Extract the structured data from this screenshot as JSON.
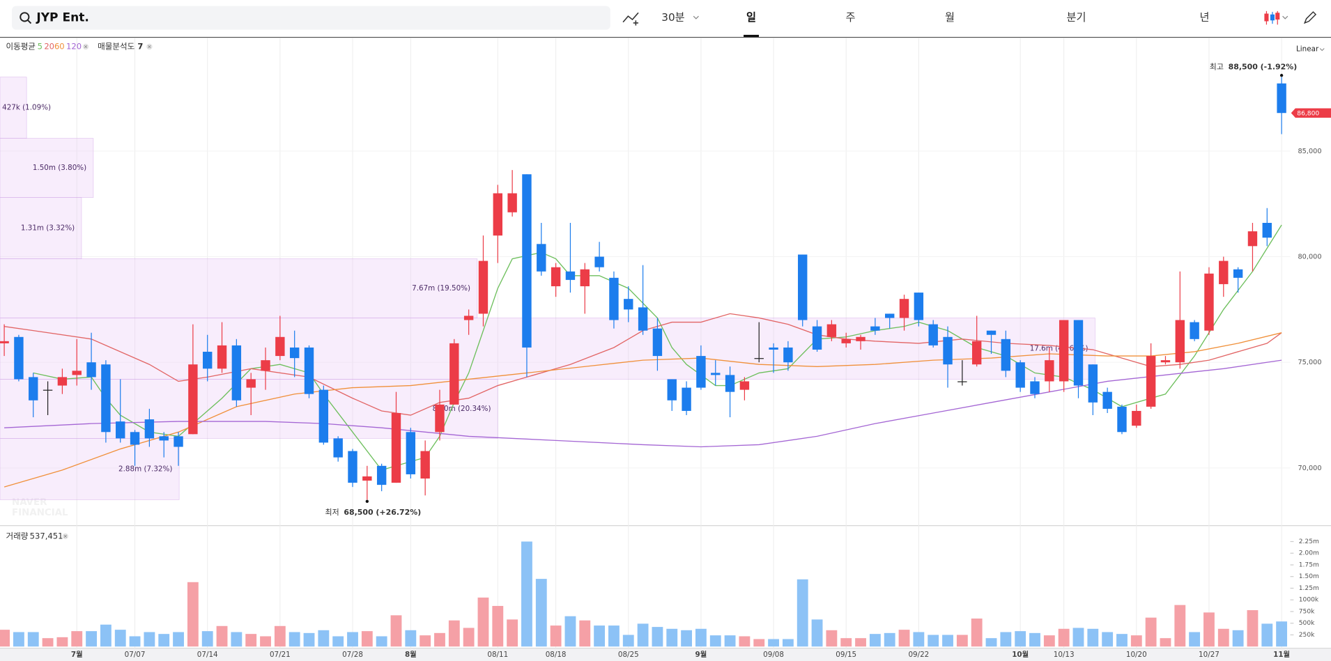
{
  "toolbar": {
    "search": "JYP Ent.",
    "intervals": [
      "30분",
      "일",
      "주",
      "월",
      "분기",
      "년"
    ],
    "selected": 1,
    "scale": "Linear"
  },
  "chart_data": {
    "type": "candlestick",
    "categories": [
      null,
      null,
      null,
      null,
      null,
      "7월",
      null,
      null,
      null,
      "07/07",
      null,
      null,
      null,
      null,
      "07/14",
      null,
      null,
      null,
      null,
      "07/21",
      null,
      null,
      null,
      null,
      "07/28",
      null,
      null,
      null,
      "8월",
      null,
      null,
      null,
      null,
      null,
      "08/11",
      null,
      null,
      null,
      "08/18",
      null,
      null,
      null,
      null,
      "08/25",
      null,
      null,
      null,
      null,
      "9월",
      null,
      null,
      null,
      null,
      "09/08",
      null,
      null,
      null,
      null,
      "09/15",
      null,
      null,
      null,
      null,
      "09/22",
      null,
      null,
      null,
      null,
      null,
      null,
      "10월",
      null,
      null,
      "10/13",
      null,
      null,
      null,
      null,
      "10/20",
      null,
      null,
      null,
      null,
      "10/27",
      null,
      null,
      null,
      null,
      "11월"
    ],
    "open": [
      75900,
      76200,
      74300,
      73700,
      73900,
      74400,
      75000,
      74900,
      72200,
      71700,
      72300,
      71500,
      71500,
      71600,
      75500,
      74700,
      75800,
      73800,
      74600,
      75300,
      75700,
      75700,
      73700,
      71400,
      70800,
      69400,
      70100,
      69300,
      71700,
      69500,
      71700,
      73000,
      77000,
      77300,
      81000,
      82100,
      83900,
      80600,
      78600,
      79300,
      78600,
      80000,
      79000,
      78000,
      77600,
      76600,
      74200,
      73800,
      75300,
      74500,
      74400,
      73700,
      75200,
      75700,
      75700,
      80100,
      76700,
      76200,
      75900,
      76000,
      76700,
      77300,
      77100,
      78300,
      76800,
      76200,
      74100,
      74900,
      76500,
      76100,
      75000,
      74100,
      74100,
      74100,
      77000,
      74900,
      73600,
      72900,
      72000,
      72900,
      75000,
      75000,
      76900,
      76500,
      78700,
      79400,
      80500,
      81600,
      88200
    ],
    "high": [
      76800,
      76300,
      74500,
      74100,
      74700,
      76100,
      76400,
      75100,
      74200,
      71800,
      72800,
      71700,
      71700,
      76800,
      76300,
      76900,
      76100,
      74500,
      75700,
      77200,
      76500,
      75800,
      73900,
      71500,
      70900,
      70100,
      70200,
      73600,
      71900,
      71300,
      73700,
      76100,
      77500,
      81000,
      83400,
      84100,
      83900,
      81600,
      79700,
      81600,
      79700,
      80700,
      79300,
      78600,
      79600,
      77100,
      74200,
      74100,
      75800,
      75100,
      74800,
      74300,
      76900,
      75900,
      76000,
      80100,
      77000,
      77000,
      76400,
      76300,
      77100,
      77300,
      78200,
      78300,
      77000,
      76700,
      75100,
      77200,
      76500,
      76500,
      75100,
      74300,
      75700,
      77000,
      77000,
      74900,
      73800,
      73000,
      73000,
      75900,
      75300,
      79300,
      77000,
      79500,
      80000,
      79500,
      81600,
      82300,
      88500
    ],
    "low": [
      75300,
      74100,
      72400,
      72500,
      73500,
      73900,
      73700,
      71200,
      71200,
      70100,
      71000,
      70500,
      70100,
      71600,
      74100,
      74500,
      72900,
      72500,
      73700,
      75100,
      74300,
      73300,
      71100,
      70300,
      69100,
      68500,
      68900,
      69300,
      69500,
      68700,
      71300,
      73000,
      76300,
      76700,
      79700,
      81900,
      74300,
      79100,
      78100,
      78300,
      77300,
      79300,
      76600,
      76900,
      76300,
      74600,
      72700,
      72500,
      73700,
      73900,
      72400,
      73200,
      75000,
      74500,
      74600,
      76700,
      75500,
      76000,
      75700,
      75600,
      76300,
      76600,
      76500,
      76700,
      75700,
      73800,
      73900,
      74800,
      75400,
      74300,
      73600,
      73300,
      73600,
      73600,
      73300,
      72500,
      72600,
      71600,
      71900,
      72800,
      74900,
      74700,
      76000,
      76300,
      78100,
      78300,
      79300,
      80500,
      85800
    ],
    "close": [
      76000,
      74200,
      73200,
      73700,
      74300,
      74600,
      74300,
      71700,
      71400,
      71100,
      71400,
      71300,
      71000,
      74900,
      74700,
      75800,
      73200,
      74200,
      75100,
      76200,
      75200,
      73500,
      71200,
      70500,
      69300,
      69600,
      69200,
      72600,
      69700,
      70800,
      73000,
      75900,
      77200,
      79800,
      83000,
      83000,
      75700,
      79300,
      79500,
      78900,
      79400,
      79500,
      77000,
      77500,
      76500,
      75300,
      73200,
      72700,
      73800,
      74400,
      73600,
      74100,
      75200,
      75600,
      75000,
      77000,
      75600,
      76800,
      76100,
      76200,
      76500,
      77100,
      78000,
      77000,
      75800,
      74900,
      74100,
      76000,
      76300,
      74600,
      73800,
      73500,
      75100,
      77000,
      73900,
      73100,
      72800,
      71700,
      72700,
      75300,
      75100,
      77000,
      76100,
      79200,
      79800,
      79000,
      81200,
      80900,
      86800
    ],
    "up_color": "#ec3c47",
    "down_color": "#1c7ded",
    "ylim": [
      67330,
      90340
    ],
    "yticks": [
      {
        "value": 70000,
        "label": "70,000"
      },
      {
        "value": 75000,
        "label": "75,000"
      },
      {
        "value": 80000,
        "label": "80,000"
      },
      {
        "value": 85000,
        "label": "85,000"
      }
    ],
    "ma_label": "이동평균",
    "moving_averages": [
      {
        "name": "5",
        "color": "#6dbf5c",
        "x": [
          2,
          4,
          6,
          7,
          8,
          10,
          12,
          13,
          15,
          17,
          19,
          21,
          22,
          24,
          26,
          27,
          29,
          30,
          31,
          32,
          33,
          34,
          35,
          37,
          38,
          39,
          41,
          43,
          45,
          46,
          47,
          49,
          50,
          52,
          54,
          56,
          58,
          60,
          62,
          63,
          65,
          67,
          69,
          71,
          73,
          75,
          77,
          79,
          80,
          82,
          84,
          86,
          88
        ],
        "values": [
          74500,
          74200,
          74300,
          73300,
          72500,
          71700,
          71500,
          72100,
          73300,
          74700,
          74900,
          74500,
          73500,
          71700,
          69900,
          70100,
          70500,
          71500,
          73100,
          74500,
          76500,
          78500,
          79900,
          80200,
          79900,
          79100,
          79100,
          78500,
          77100,
          75700,
          74900,
          73900,
          73900,
          74500,
          74700,
          76100,
          76200,
          76500,
          76700,
          76900,
          76500,
          75700,
          75300,
          74500,
          74300,
          73700,
          72900,
          73300,
          73500,
          75300,
          77500,
          79300,
          81500
        ]
      },
      {
        "name": "20",
        "color": "#e26565",
        "x": [
          0,
          2,
          6,
          10,
          12,
          14,
          17,
          21,
          24,
          26,
          28,
          30,
          32,
          34,
          36,
          39,
          42,
          44,
          46,
          48,
          50,
          52,
          54,
          56,
          58,
          60,
          63,
          66,
          69,
          72,
          75,
          77,
          79,
          81,
          83,
          85,
          87,
          88
        ],
        "values": [
          76700,
          76500,
          76100,
          74900,
          74100,
          74300,
          74700,
          74300,
          73300,
          72700,
          72500,
          73100,
          73300,
          73900,
          74300,
          74900,
          75700,
          76500,
          76900,
          76900,
          77300,
          77100,
          76800,
          76300,
          76100,
          76000,
          75900,
          76100,
          75900,
          75800,
          75600,
          75200,
          74800,
          74900,
          75100,
          75500,
          75900,
          76400
        ]
      },
      {
        "name": "60",
        "color": "#f0903a",
        "x": [
          0,
          4,
          8,
          12,
          16,
          20,
          24,
          28,
          32,
          36,
          40,
          44,
          48,
          52,
          56,
          60,
          64,
          68,
          72,
          76,
          79,
          82,
          85,
          88
        ],
        "values": [
          69100,
          69900,
          70900,
          71700,
          72900,
          73500,
          73800,
          73900,
          74200,
          74500,
          74800,
          75100,
          75200,
          74900,
          74800,
          74900,
          75100,
          75200,
          75400,
          75300,
          75300,
          75500,
          75900,
          76400
        ]
      },
      {
        "name": "120",
        "color": "#a466d4",
        "x": [
          0,
          6,
          12,
          18,
          22,
          26,
          32,
          38,
          44,
          48,
          52,
          56,
          60,
          64,
          68,
          72,
          76,
          80,
          84,
          88
        ],
        "values": [
          71900,
          72100,
          72200,
          72200,
          72100,
          71900,
          71500,
          71300,
          71100,
          71000,
          71100,
          71500,
          72100,
          72600,
          73100,
          73600,
          74100,
          74400,
          74700,
          75100
        ]
      }
    ],
    "volume_profile": {
      "label": "매물분석도",
      "count": 7,
      "bins": [
        68500,
        71400,
        74200,
        77100,
        79900,
        82800,
        85600,
        88500
      ],
      "values": [
        2880000,
        8000000,
        17600000,
        7670000,
        1310000,
        1500000,
        427000
      ],
      "value_labels": [
        "2.88m (7.32%)",
        "8.00m (20.34%)",
        "17.6m (44.62%)",
        "7.67m (19.50%)",
        "1.31m (3.32%)",
        "1.50m (3.80%)",
        "427k (1.09%)"
      ]
    },
    "high_marker": {
      "label": "최고",
      "value": 88500,
      "text": "88,500 (-1.92%)"
    },
    "low_marker": {
      "label": "최저",
      "value": 68500,
      "text": "68,500 (+26.72%)"
    },
    "current_price": {
      "value": 86800,
      "label": "86,800"
    },
    "watermark": [
      "NAVER",
      "FINANCIAL"
    ],
    "volume": {
      "label": "거래량",
      "current": {
        "value": 537451,
        "label": "537,451"
      },
      "up_color": "#f5a0a6",
      "down_color": "#8cc2f6",
      "values": [
        360000,
        310000,
        310000,
        180000,
        200000,
        330000,
        330000,
        470000,
        360000,
        220000,
        310000,
        270000,
        310000,
        1380000,
        330000,
        440000,
        310000,
        270000,
        220000,
        440000,
        310000,
        290000,
        350000,
        220000,
        310000,
        330000,
        220000,
        670000,
        350000,
        240000,
        290000,
        560000,
        400000,
        1050000,
        870000,
        580000,
        2250000,
        1450000,
        450000,
        650000,
        560000,
        450000,
        450000,
        250000,
        490000,
        420000,
        380000,
        350000,
        380000,
        240000,
        240000,
        220000,
        160000,
        160000,
        160000,
        1440000,
        580000,
        350000,
        180000,
        180000,
        270000,
        290000,
        360000,
        310000,
        250000,
        250000,
        250000,
        600000,
        180000,
        310000,
        330000,
        290000,
        240000,
        380000,
        400000,
        380000,
        310000,
        270000,
        240000,
        620000,
        180000,
        890000,
        310000,
        730000,
        380000,
        350000,
        780000,
        490000,
        537451
      ],
      "ylim": [
        0,
        2527000
      ],
      "yticks": [
        {
          "value": 250000,
          "label": "250k"
        },
        {
          "value": 500000,
          "label": "500k"
        },
        {
          "value": 750000,
          "label": "750k"
        },
        {
          "value": 1000000,
          "label": "1000k"
        },
        {
          "value": 1250000,
          "label": "1.25m"
        },
        {
          "value": 1500000,
          "label": "1.50m"
        },
        {
          "value": 1750000,
          "label": "1.75m"
        },
        {
          "value": 2000000,
          "label": "2.00m"
        },
        {
          "value": 2250000,
          "label": "2.25m"
        }
      ]
    }
  }
}
